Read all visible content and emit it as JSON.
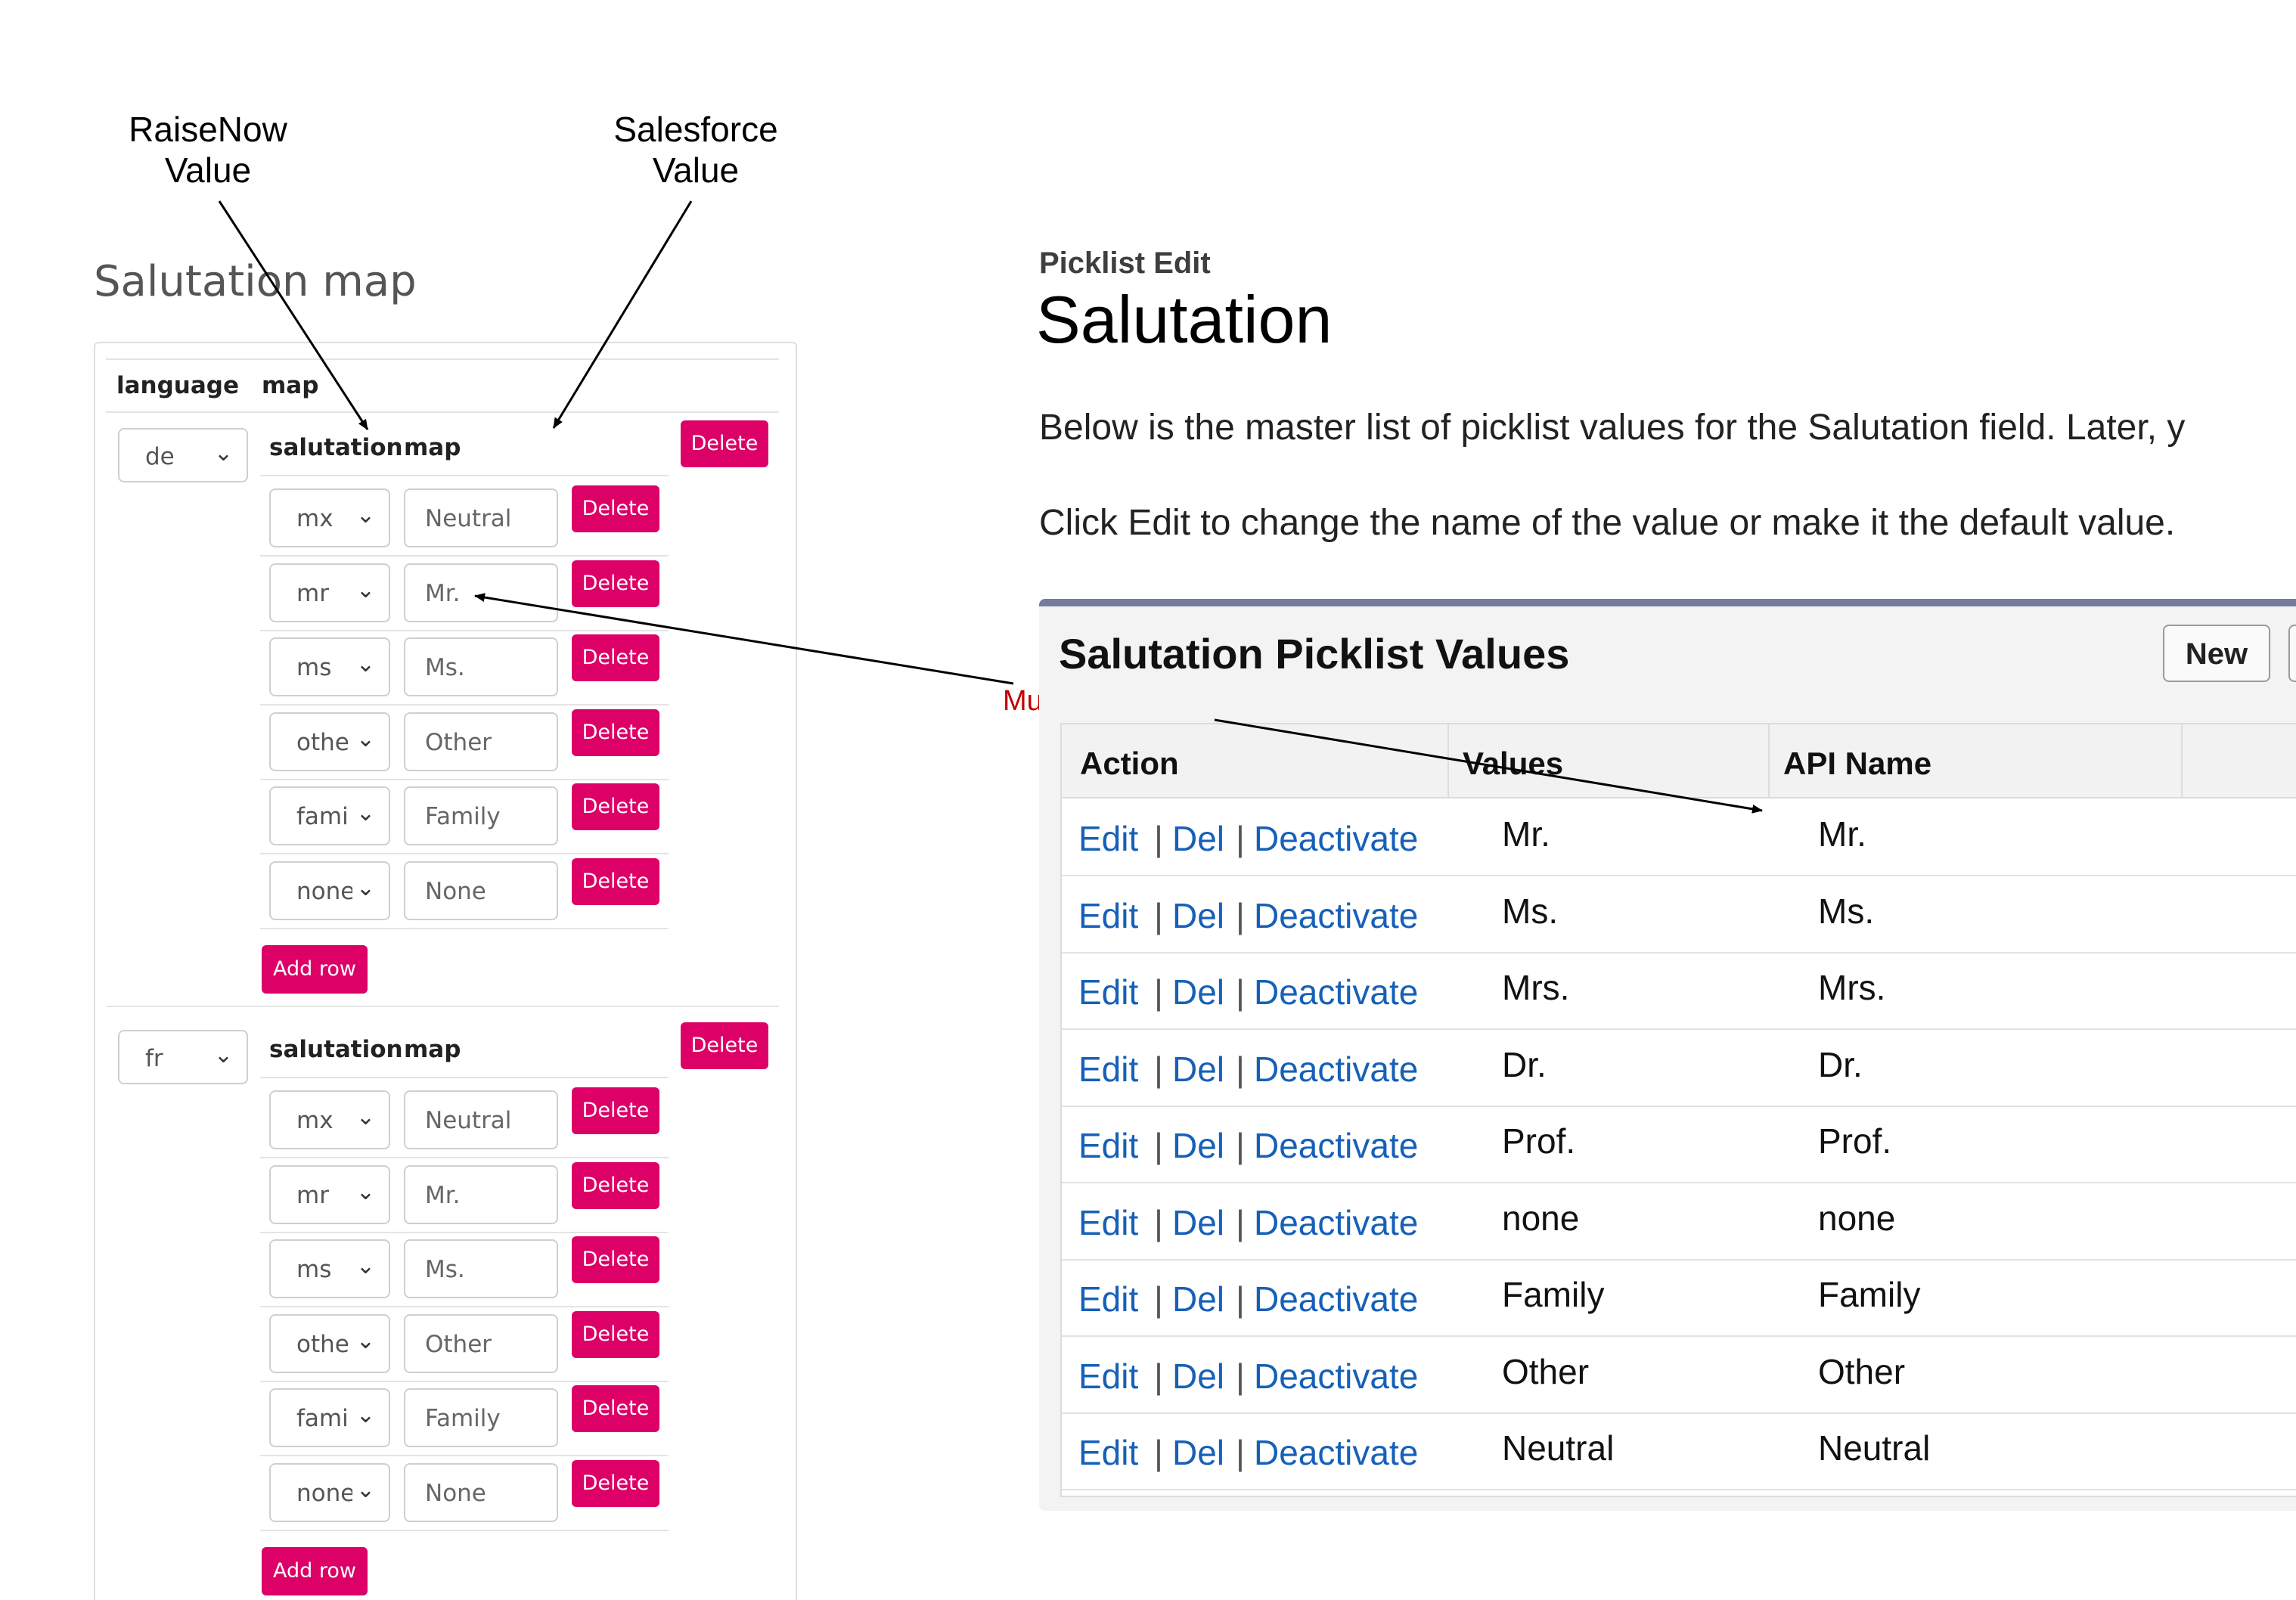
{
  "annotations": {
    "raisenow_label": [
      "RaiseNow",
      "Value"
    ],
    "salesforce_label": [
      "Salesforce",
      "Value"
    ],
    "must_be_identical": "Must be identical"
  },
  "left": {
    "title": "Salutation map",
    "header_language": "language",
    "header_map": "map",
    "delete_label": "Delete",
    "add_row_label": "Add row",
    "sub_header_salutation": "salutation",
    "sub_header_map": "map",
    "groups": [
      {
        "language": "de",
        "rows": [
          {
            "key": "mx",
            "value": "Neutral"
          },
          {
            "key": "mr",
            "value": "Mr."
          },
          {
            "key": "ms",
            "value": "Ms."
          },
          {
            "key": "othe",
            "value": "Other"
          },
          {
            "key": "fami",
            "value": "Family"
          },
          {
            "key": "none",
            "value": "None"
          }
        ]
      },
      {
        "language": "fr",
        "rows": [
          {
            "key": "mx",
            "value": "Neutral"
          },
          {
            "key": "mr",
            "value": "Mr."
          },
          {
            "key": "ms",
            "value": "Ms."
          },
          {
            "key": "othe",
            "value": "Other"
          },
          {
            "key": "fami",
            "value": "Family"
          },
          {
            "key": "none",
            "value": "None"
          }
        ]
      }
    ]
  },
  "right": {
    "subtitle": "Picklist Edit",
    "title": "Salutation",
    "desc1": "Below is the master list of picklist values for the Salutation field. Later, y",
    "desc2": "Click Edit to change the name of the value or make it the default value.",
    "card_title": "Salutation Picklist Values",
    "new_button": "New",
    "columns": [
      "Action",
      "Values",
      "API Name"
    ],
    "actions": {
      "edit": "Edit",
      "del": "Del",
      "deactivate": "Deactivate",
      "sep": "|"
    },
    "rows": [
      {
        "value": "Mr.",
        "api": "Mr."
      },
      {
        "value": "Ms.",
        "api": "Ms."
      },
      {
        "value": "Mrs.",
        "api": "Mrs."
      },
      {
        "value": "Dr.",
        "api": "Dr."
      },
      {
        "value": "Prof.",
        "api": "Prof."
      },
      {
        "value": "none",
        "api": "none"
      },
      {
        "value": "Family",
        "api": "Family"
      },
      {
        "value": "Other",
        "api": "Other"
      },
      {
        "value": "Neutral",
        "api": "Neutral"
      }
    ]
  }
}
